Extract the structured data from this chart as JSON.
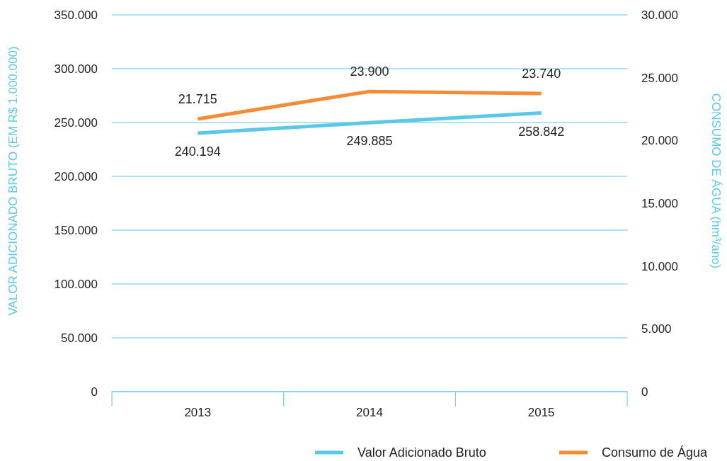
{
  "chart_data": {
    "type": "line",
    "categories": [
      "2013",
      "2014",
      "2015"
    ],
    "ylabel": "VALOR ADICIONADO BRUTO (EM R$ 1.000.000)",
    "y2label": "CONSUMO DE ÁGUA (hm³/ano)",
    "ylim": [
      0,
      350000
    ],
    "yticks": [
      {
        "value": 0,
        "label": "0"
      },
      {
        "value": 50000,
        "label": "50.000"
      },
      {
        "value": 100000,
        "label": "100.000"
      },
      {
        "value": 150000,
        "label": "150.000"
      },
      {
        "value": 200000,
        "label": "200.000"
      },
      {
        "value": 250000,
        "label": "250.000"
      },
      {
        "value": 300000,
        "label": "300.000"
      },
      {
        "value": 350000,
        "label": "350.000"
      }
    ],
    "y2lim": [
      0,
      30000
    ],
    "y2ticks": [
      {
        "value": 0,
        "label": "0"
      },
      {
        "value": 5000,
        "label": "5.000"
      },
      {
        "value": 10000,
        "label": "10.000"
      },
      {
        "value": 15000,
        "label": "15.000"
      },
      {
        "value": 20000,
        "label": "20.000"
      },
      {
        "value": 25000,
        "label": "25.000"
      },
      {
        "value": 30000,
        "label": "30.000"
      }
    ],
    "grid": "y",
    "legend": "bottom",
    "series": [
      {
        "name": "Valor Adicionado Bruto",
        "color": "#5bc8e8",
        "values": [
          240194,
          249885,
          258842
        ],
        "value_labels": [
          "240.194",
          "249.885",
          "258.842"
        ]
      },
      {
        "name": "Consumo de Água",
        "color": "#f68b33",
        "axis": "y2",
        "values": [
          21715,
          23900,
          23740
        ],
        "value_labels": [
          "21.715",
          "23.900",
          "23.740"
        ]
      }
    ]
  }
}
